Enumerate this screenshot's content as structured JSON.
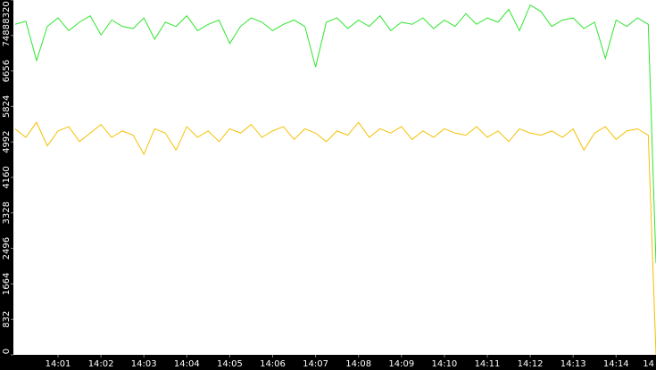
{
  "chart_data": {
    "type": "line",
    "x": [
      0,
      0.25,
      0.5,
      0.75,
      1,
      1.25,
      1.5,
      1.75,
      2,
      2.25,
      2.5,
      2.75,
      3,
      3.25,
      3.5,
      3.75,
      4,
      4.25,
      4.5,
      4.75,
      5,
      5.25,
      5.5,
      5.75,
      6,
      6.25,
      6.5,
      6.75,
      7,
      7.25,
      7.5,
      7.75,
      8,
      8.25,
      8.5,
      8.75,
      9,
      9.25,
      9.5,
      9.75,
      10,
      10.25,
      10.5,
      10.75,
      11,
      11.25,
      11.5,
      11.75,
      12,
      12.25,
      12.5,
      12.75,
      13,
      13.25,
      13.5,
      13.75,
      14,
      14.25,
      14.5,
      14.75,
      14.93
    ],
    "series": [
      {
        "color": "#2ee62e",
        "values": [
          7750,
          7820,
          6900,
          7700,
          7900,
          7600,
          7800,
          7950,
          7500,
          7850,
          7700,
          7650,
          7900,
          7400,
          7800,
          7700,
          7950,
          7600,
          7750,
          7850,
          7300,
          7700,
          7900,
          7800,
          7600,
          7750,
          7850,
          7700,
          6750,
          7800,
          7900,
          7650,
          7850,
          7700,
          7950,
          7600,
          7800,
          7750,
          7900,
          7650,
          7850,
          7700,
          8000,
          7750,
          7900,
          7800,
          8100,
          7600,
          8200,
          8050,
          7700,
          7850,
          7900,
          7650,
          7800,
          6950,
          7850,
          7700,
          7900,
          7750,
          2150
        ]
      },
      {
        "color": "#f5c000",
        "values": [
          5300,
          5100,
          5450,
          4900,
          5250,
          5350,
          5000,
          5200,
          5400,
          5100,
          5250,
          5150,
          4700,
          5300,
          5200,
          4800,
          5350,
          5100,
          5250,
          5000,
          5300,
          5200,
          5400,
          5100,
          5250,
          5350,
          5050,
          5300,
          5200,
          5000,
          5250,
          5150,
          5450,
          5100,
          5300,
          5200,
          5350,
          5050,
          5250,
          5100,
          5300,
          5200,
          5150,
          5350,
          5100,
          5250,
          5000,
          5300,
          5200,
          5150,
          5250,
          5100,
          5300,
          4800,
          5200,
          5350,
          5050,
          5250,
          5300,
          5150,
          0
        ]
      }
    ],
    "ylim": [
      0,
      8320
    ],
    "yticks": [
      0,
      832,
      1664,
      2496,
      3328,
      4160,
      4992,
      5824,
      6656,
      7488,
      8320
    ],
    "xlim": [
      -0.04,
      14.93
    ],
    "xticks": [
      {
        "value": 1,
        "label": "14:01"
      },
      {
        "value": 2,
        "label": "14:02"
      },
      {
        "value": 3,
        "label": "14:03"
      },
      {
        "value": 4,
        "label": "14:04"
      },
      {
        "value": 5,
        "label": "14:05"
      },
      {
        "value": 6,
        "label": "14:06"
      },
      {
        "value": 7,
        "label": "14:07"
      },
      {
        "value": 8,
        "label": "14:08"
      },
      {
        "value": 9,
        "label": "14:09"
      },
      {
        "value": 10,
        "label": "14:10"
      },
      {
        "value": 11,
        "label": "14:11"
      },
      {
        "value": 12,
        "label": "14:12"
      },
      {
        "value": 13,
        "label": "14:13"
      },
      {
        "value": 14,
        "label": "14:14"
      },
      {
        "value": 15,
        "label": "14"
      }
    ]
  }
}
